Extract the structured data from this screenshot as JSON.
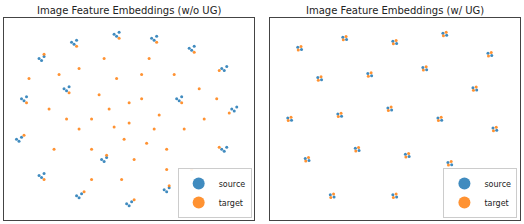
{
  "chart_data": [
    {
      "type": "scatter",
      "title": "Image Feature Embeddings (w/o UG)",
      "xlim": [
        0,
        100
      ],
      "ylim": [
        0,
        100
      ],
      "grid": false,
      "tick_labels": false,
      "legend": "lower right",
      "series": [
        {
          "name": "source",
          "color": "#1f77b4",
          "marker": "circle",
          "x": [
            14,
            16,
            15,
            27,
            29,
            28,
            44,
            46,
            45,
            59,
            61,
            60,
            74,
            76,
            75,
            87,
            89,
            88,
            91,
            93,
            92,
            87,
            89,
            88,
            7,
            9,
            8,
            5,
            7,
            6,
            14,
            16,
            15,
            29,
            31,
            30,
            49,
            51,
            50,
            64,
            66,
            65,
            24,
            26,
            25,
            69,
            71,
            70,
            39,
            41,
            40
          ],
          "values": [
            80,
            81,
            79,
            88,
            89,
            87,
            92,
            93,
            91,
            90,
            91,
            89,
            85,
            86,
            84,
            75,
            76,
            74,
            55,
            56,
            54,
            35,
            36,
            34,
            60,
            61,
            59,
            40,
            41,
            39,
            22,
            23,
            21,
            12,
            13,
            11,
            8,
            9,
            7,
            15,
            16,
            14,
            65,
            66,
            64,
            60,
            61,
            59,
            30,
            31,
            29
          ]
        },
        {
          "name": "target",
          "color": "#ff7f0e",
          "marker": "circle",
          "x": [
            35,
            42,
            50,
            55,
            48,
            60,
            38,
            30,
            62,
            45,
            55,
            35,
            52,
            65,
            72,
            25,
            20,
            78,
            40,
            58,
            30,
            68,
            50,
            44,
            57,
            22,
            80,
            18,
            47,
            35,
            75,
            10,
            85,
            65,
            16,
            29,
            46,
            61,
            76,
            86,
            90,
            86,
            9,
            8,
            16,
            32,
            52,
            66,
            26,
            71,
            41
          ],
          "values": [
            50,
            55,
            48,
            60,
            40,
            45,
            62,
            45,
            52,
            70,
            72,
            35,
            30,
            35,
            45,
            50,
            35,
            65,
            80,
            80,
            75,
            72,
            58,
            46,
            38,
            72,
            50,
            55,
            20,
            20,
            25,
            70,
            60,
            25,
            82,
            86,
            90,
            88,
            83,
            74,
            53,
            36,
            58,
            42,
            20,
            14,
            10,
            17,
            63,
            58,
            32
          ]
        }
      ]
    },
    {
      "type": "scatter",
      "title": "Image Feature Embeddings (w/ UG)",
      "xlim": [
        0,
        100
      ],
      "ylim": [
        0,
        100
      ],
      "grid": false,
      "tick_labels": false,
      "legend": "lower right",
      "series": [
        {
          "name": "source",
          "color": "#1f77b4",
          "marker": "circle",
          "x": [
            11.2,
            12.7,
            29.2,
            30.7,
            49.2,
            50.7,
            69.2,
            70.7,
            87.2,
            88.7,
            19.2,
            20.7,
            39.2,
            40.7,
            61.2,
            62.7,
            81.2,
            82.7,
            7.2,
            8.7,
            27.2,
            28.7,
            47.2,
            48.7,
            67.2,
            68.7,
            89.2,
            90.7,
            14.2,
            15.7,
            34.2,
            35.7,
            54.2,
            55.7,
            71.2,
            72.7,
            24.2,
            25.7,
            49.2,
            50.7
          ],
          "values": [
            85.5,
            84.4,
            90.5,
            89.4,
            88.5,
            87.4,
            92.5,
            91.4,
            82.5,
            81.4,
            70.5,
            69.4,
            72.5,
            71.4,
            75.5,
            74.4,
            65.5,
            64.4,
            50.5,
            49.4,
            52.5,
            51.4,
            55.5,
            54.4,
            50.5,
            49.4,
            45.5,
            44.4,
            30.5,
            29.4,
            35.5,
            34.4,
            32.5,
            31.4,
            28.5,
            27.4,
            12.5,
            11.4,
            12.5,
            11.4
          ]
        },
        {
          "name": "target",
          "color": "#ff7f0e",
          "marker": "circle",
          "x": [
            12.5,
            11.4,
            30.5,
            29.4,
            50.5,
            49.4,
            70.5,
            69.4,
            88.5,
            87.4,
            20.5,
            19.4,
            40.5,
            39.4,
            62.5,
            61.4,
            82.5,
            81.4,
            8.5,
            7.4,
            28.5,
            27.4,
            48.5,
            47.4,
            68.5,
            67.4,
            90.5,
            89.4,
            15.5,
            14.4,
            35.5,
            34.4,
            55.5,
            54.4,
            72.5,
            71.4,
            25.5,
            24.4,
            50.5,
            49.4
          ],
          "values": [
            85.9,
            84.2,
            90.9,
            89.2,
            88.9,
            87.2,
            92.9,
            91.2,
            82.9,
            81.2,
            70.9,
            69.2,
            72.9,
            71.2,
            75.9,
            74.2,
            65.9,
            64.2,
            50.9,
            49.2,
            52.9,
            51.2,
            55.9,
            54.2,
            50.9,
            49.2,
            45.9,
            44.2,
            30.9,
            29.2,
            35.9,
            34.2,
            32.9,
            31.2,
            28.9,
            27.2,
            12.9,
            11.2,
            12.9,
            11.2
          ]
        }
      ]
    }
  ]
}
